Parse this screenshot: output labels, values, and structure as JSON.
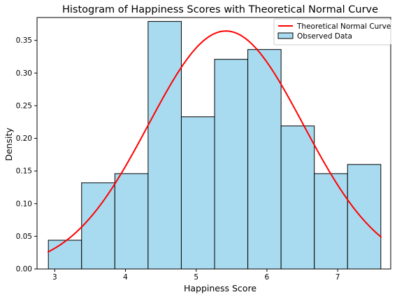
{
  "chart_data": {
    "type": "bar",
    "title": "Histogram of Happiness Scores with Theoretical Normal Curve",
    "xlabel": "Happiness Score",
    "ylabel": "Density",
    "xlim": [
      2.75,
      7.75
    ],
    "ylim": [
      0,
      0.385
    ],
    "x_ticks": [
      3,
      4,
      5,
      6,
      7
    ],
    "y_ticks": [
      0.0,
      0.05,
      0.1,
      0.15,
      0.2,
      0.25,
      0.3,
      0.35
    ],
    "y_tick_labels": [
      "0.00",
      "0.05",
      "0.10",
      "0.15",
      "0.20",
      "0.25",
      "0.30",
      "0.35"
    ],
    "x_tick_labels": [
      "3",
      "4",
      "5",
      "6",
      "7"
    ],
    "grid": false,
    "legend_position": "top-right",
    "series": [
      {
        "name": "Observed Data",
        "kind": "histogram",
        "color": "#a8dbf0",
        "edge_color": "#000000",
        "bins": [
          {
            "start": 2.91,
            "end": 3.38,
            "value": 0.044
          },
          {
            "start": 3.38,
            "end": 3.85,
            "value": 0.132
          },
          {
            "start": 3.85,
            "end": 4.32,
            "value": 0.146
          },
          {
            "start": 4.32,
            "end": 4.79,
            "value": 0.379
          },
          {
            "start": 4.79,
            "end": 5.26,
            "value": 0.233
          },
          {
            "start": 5.26,
            "end": 5.73,
            "value": 0.321
          },
          {
            "start": 5.73,
            "end": 6.2,
            "value": 0.336
          },
          {
            "start": 6.2,
            "end": 6.67,
            "value": 0.219
          },
          {
            "start": 6.67,
            "end": 7.14,
            "value": 0.146
          },
          {
            "start": 7.14,
            "end": 7.61,
            "value": 0.16
          }
        ]
      },
      {
        "name": "Theoretical Normal Curve",
        "kind": "line",
        "color": "#ff0000",
        "mean": 5.42,
        "std": 1.095,
        "x_range": [
          2.9,
          7.62
        ]
      }
    ]
  }
}
